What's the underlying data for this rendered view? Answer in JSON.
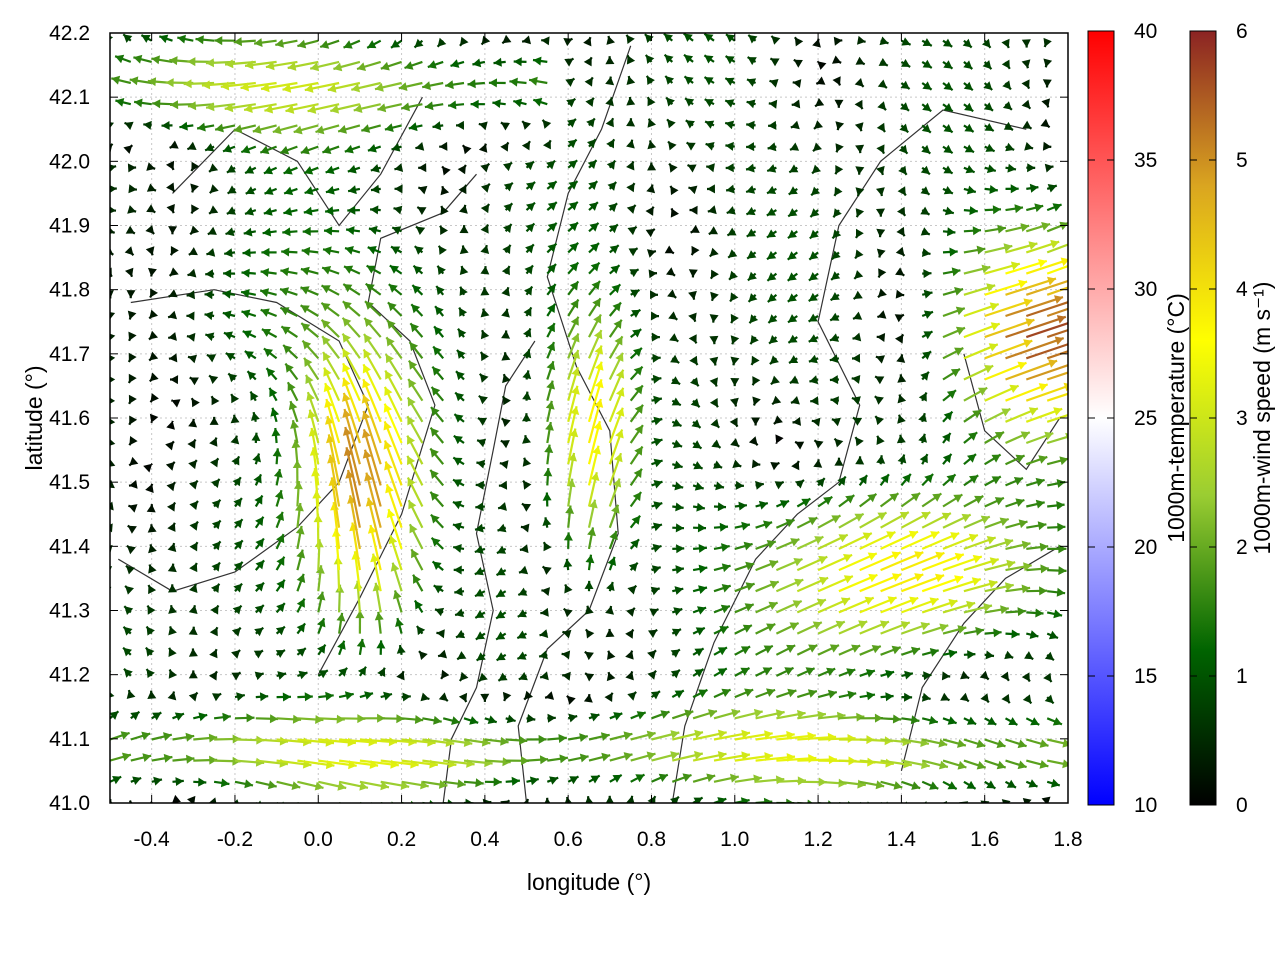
{
  "chart_data": {
    "type": "vector-field",
    "xlabel": "longitude (°)",
    "ylabel": "latitude (°)",
    "xlim": [
      -0.5,
      1.8
    ],
    "ylim": [
      41.0,
      42.2
    ],
    "x_ticks": [
      "-0.4",
      "-0.2",
      "0.0",
      "0.2",
      "0.4",
      "0.6",
      "0.8",
      "1.0",
      "1.2",
      "1.4",
      "1.6",
      "1.8"
    ],
    "y_ticks": [
      "41.0",
      "41.1",
      "41.2",
      "41.3",
      "41.4",
      "41.5",
      "41.6",
      "41.7",
      "41.8",
      "41.9",
      "42.0",
      "42.1",
      "42.2"
    ],
    "grid": true,
    "colorbars": [
      {
        "label": "1000m-temperature (°C)",
        "range": [
          10,
          40
        ],
        "ticks": [
          "10",
          "15",
          "20",
          "25",
          "30",
          "35",
          "40"
        ],
        "colors": [
          "#0000ff",
          "#ffffff",
          "#ff0000"
        ]
      },
      {
        "label": "1000m-wind speed (m s⁻¹)",
        "range": [
          0,
          6
        ],
        "ticks": [
          "0",
          "1",
          "2",
          "3",
          "4",
          "5",
          "6"
        ],
        "colors": [
          "#000000",
          "#006400",
          "#9acd32",
          "#ffff00",
          "#daa520",
          "#8b2323"
        ]
      }
    ],
    "contours": [
      {
        "points": [
          [
            -0.48,
            41.38
          ],
          [
            -0.35,
            41.33
          ],
          [
            -0.2,
            41.36
          ],
          [
            -0.05,
            41.43
          ],
          [
            0.05,
            41.5
          ],
          [
            0.12,
            41.62
          ],
          [
            0.05,
            41.72
          ],
          [
            -0.1,
            41.78
          ],
          [
            -0.25,
            41.8
          ],
          [
            -0.45,
            41.78
          ]
        ]
      },
      {
        "points": [
          [
            0.0,
            41.2
          ],
          [
            0.1,
            41.32
          ],
          [
            0.2,
            41.45
          ],
          [
            0.28,
            41.62
          ],
          [
            0.22,
            41.72
          ],
          [
            0.12,
            41.78
          ],
          [
            0.15,
            41.88
          ],
          [
            0.3,
            41.92
          ],
          [
            0.38,
            41.98
          ]
        ]
      },
      {
        "points": [
          [
            0.5,
            41.0
          ],
          [
            0.48,
            41.12
          ],
          [
            0.55,
            41.24
          ],
          [
            0.65,
            41.3
          ],
          [
            0.72,
            41.42
          ],
          [
            0.7,
            41.58
          ],
          [
            0.62,
            41.68
          ],
          [
            0.55,
            41.82
          ],
          [
            0.6,
            41.95
          ],
          [
            0.68,
            42.05
          ],
          [
            0.75,
            42.18
          ]
        ]
      },
      {
        "points": [
          [
            0.85,
            41.0
          ],
          [
            0.88,
            41.12
          ],
          [
            0.95,
            41.25
          ],
          [
            1.05,
            41.38
          ],
          [
            1.15,
            41.45
          ],
          [
            1.25,
            41.5
          ],
          [
            1.3,
            41.62
          ],
          [
            1.2,
            41.75
          ],
          [
            1.25,
            41.9
          ],
          [
            1.35,
            42.0
          ],
          [
            1.5,
            42.08
          ],
          [
            1.7,
            42.05
          ]
        ]
      },
      {
        "points": [
          [
            1.4,
            41.05
          ],
          [
            1.45,
            41.18
          ],
          [
            1.55,
            41.28
          ],
          [
            1.65,
            41.35
          ],
          [
            1.78,
            41.4
          ]
        ]
      },
      {
        "points": [
          [
            -0.35,
            41.95
          ],
          [
            -0.2,
            42.05
          ],
          [
            -0.05,
            42.0
          ],
          [
            0.05,
            41.9
          ],
          [
            0.15,
            41.98
          ],
          [
            0.25,
            42.1
          ]
        ]
      },
      {
        "points": [
          [
            0.3,
            41.0
          ],
          [
            0.32,
            41.1
          ],
          [
            0.38,
            41.18
          ],
          [
            0.42,
            41.3
          ],
          [
            0.38,
            41.42
          ],
          [
            0.42,
            41.55
          ],
          [
            0.45,
            41.65
          ],
          [
            0.52,
            41.72
          ]
        ]
      },
      {
        "points": [
          [
            1.55,
            41.7
          ],
          [
            1.6,
            41.58
          ],
          [
            1.7,
            41.52
          ],
          [
            1.78,
            41.6
          ]
        ]
      }
    ]
  }
}
